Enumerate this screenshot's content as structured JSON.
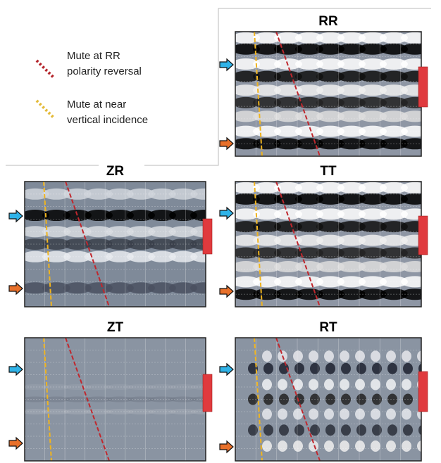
{
  "legend": [
    {
      "lines": [
        "Mute at RR",
        "polarity reversal"
      ]
    },
    {
      "lines": [
        "Mute at near",
        "vertical incidence"
      ]
    }
  ],
  "panels": [
    {
      "title": "RR"
    },
    {
      "title": "ZR"
    },
    {
      "title": "TT"
    },
    {
      "title": "ZT"
    },
    {
      "title": "RT"
    }
  ]
}
